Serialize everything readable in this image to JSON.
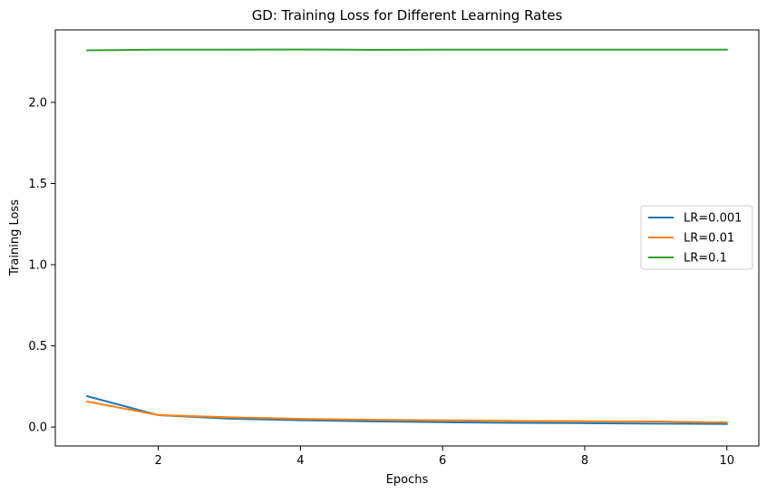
{
  "chart_data": {
    "type": "line",
    "title": "GD: Training Loss for Different Learning Rates",
    "xlabel": "Epochs",
    "ylabel": "Training Loss",
    "x": [
      1,
      2,
      3,
      4,
      5,
      6,
      7,
      8,
      9,
      10
    ],
    "xlim": [
      0.55,
      10.45
    ],
    "ylim": [
      -0.1165,
      2.4465
    ],
    "xticks": [
      2,
      4,
      6,
      8,
      10
    ],
    "xtick_labels": [
      "2",
      "4",
      "6",
      "8",
      "10"
    ],
    "yticks": [
      0.0,
      0.5,
      1.0,
      1.5,
      2.0
    ],
    "ytick_labels": [
      "0.0",
      "0.5",
      "1.0",
      "1.5",
      "2.0"
    ],
    "grid": false,
    "legend_position": "center-right",
    "series": [
      {
        "name": "LR=0.001",
        "color": "#1f77b4",
        "values": [
          0.19,
          0.073,
          0.052,
          0.042,
          0.035,
          0.03,
          0.026,
          0.024,
          0.021,
          0.019
        ]
      },
      {
        "name": "LR=0.01",
        "color": "#ff7f0e",
        "values": [
          0.157,
          0.074,
          0.06,
          0.05,
          0.045,
          0.041,
          0.038,
          0.036,
          0.034,
          0.028
        ]
      },
      {
        "name": "LR=0.1",
        "color": "#2ca02c",
        "values": [
          2.321,
          2.325,
          2.325,
          2.326,
          2.324,
          2.325,
          2.325,
          2.325,
          2.325,
          2.325
        ]
      }
    ]
  }
}
